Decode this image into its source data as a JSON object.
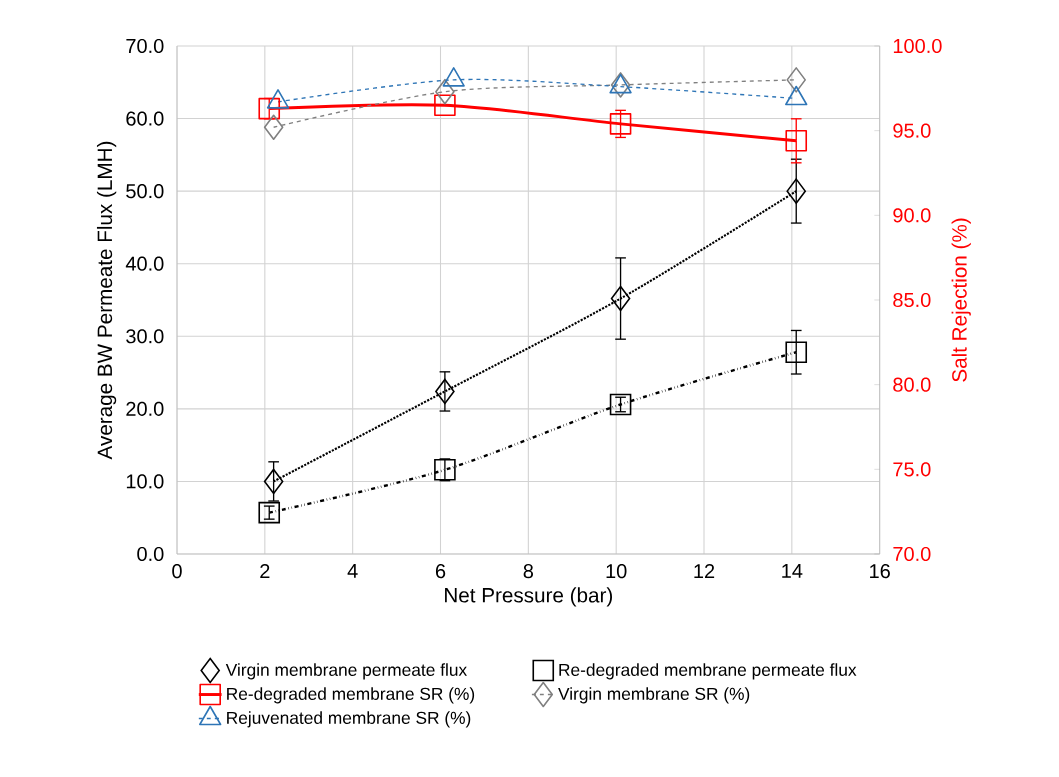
{
  "chart_data": {
    "type": "scatter",
    "xlabel": "Net Pressure (bar)",
    "ylabel": "Average BW Permeate Flux (LMH)",
    "y2label": "Salt Rejection (%)",
    "xlim": [
      0,
      16
    ],
    "xticks": [
      0,
      2,
      4,
      6,
      8,
      10,
      12,
      14,
      16
    ],
    "ylim": [
      0,
      70
    ],
    "yticks": [
      {
        "value": 0,
        "label": "0.0"
      },
      {
        "value": 10,
        "label": "10.0"
      },
      {
        "value": 20,
        "label": "20.0"
      },
      {
        "value": 30,
        "label": "30.0"
      },
      {
        "value": 40,
        "label": "40.0"
      },
      {
        "value": 50,
        "label": "50.0"
      },
      {
        "value": 60,
        "label": "60.0"
      },
      {
        "value": 70,
        "label": "70.0"
      }
    ],
    "y2lim": [
      70,
      100
    ],
    "y2ticks": [
      {
        "value": 70,
        "label": "70.0"
      },
      {
        "value": 75,
        "label": "75.0"
      },
      {
        "value": 80,
        "label": "80.0"
      },
      {
        "value": 85,
        "label": "85.0"
      },
      {
        "value": 90,
        "label": "90.0"
      },
      {
        "value": 95,
        "label": "95.0"
      },
      {
        "value": 100,
        "label": "100.0"
      }
    ],
    "grid": true,
    "legend": "bottom",
    "series": [
      {
        "name": "Virgin membrane permeate flux",
        "color": "#000000",
        "marker": "diamond",
        "x": [
          2.2,
          6.1,
          10.1,
          14.1
        ],
        "values": [
          10.0,
          22.4,
          35.2,
          50.0
        ],
        "errors": [
          2.7,
          2.7,
          5.6,
          4.4
        ]
      },
      {
        "name": "Re-degraded membrane permeate flux",
        "color": "#000000",
        "marker": "square",
        "x": [
          2.1,
          6.1,
          10.1,
          14.1
        ],
        "values": [
          5.7,
          11.6,
          20.6,
          27.8
        ],
        "errors": [
          0.9,
          1.5,
          1.0,
          3.0
        ]
      },
      {
        "name": "Re-degraded membrane SR (%)",
        "type": "line",
        "axis": "y2",
        "color": "#ff0000",
        "marker": "square",
        "line_style": "solid",
        "x": [
          2.1,
          6.1,
          10.1,
          14.1
        ],
        "values": [
          96.3,
          96.5,
          95.4,
          94.4
        ],
        "errors": [
          0.6,
          null,
          0.8,
          1.3
        ]
      },
      {
        "name": "Virgin membrane SR (%)",
        "type": "line",
        "axis": "y2",
        "color": "#808080",
        "marker": "diamond",
        "line_style": "dashed",
        "x": [
          2.2,
          6.1,
          10.1,
          14.1
        ],
        "values": [
          95.2,
          97.3,
          97.7,
          98.0
        ]
      },
      {
        "name": "Rejuvenated membrane SR (%)",
        "type": "line",
        "axis": "y2",
        "color": "#2e75b6",
        "marker": "triangle",
        "line_style": "dashed",
        "x": [
          2.3,
          6.3,
          10.1,
          14.1
        ],
        "values": [
          96.7,
          98.0,
          97.6,
          96.9
        ]
      },
      {
        "type": "line",
        "color": "#000000",
        "marker": "none",
        "line_style": "dotted",
        "x": [
          2.2,
          6.1,
          10.1,
          14.1
        ],
        "values": [
          10.0,
          22.4,
          35.2,
          50.0
        ]
      },
      {
        "type": "line",
        "color": "#000000",
        "marker": "none",
        "line_style": "dashdotted",
        "x": [
          2.1,
          6.1,
          10.1,
          14.1
        ],
        "values": [
          5.7,
          11.6,
          20.6,
          27.8
        ]
      }
    ]
  }
}
